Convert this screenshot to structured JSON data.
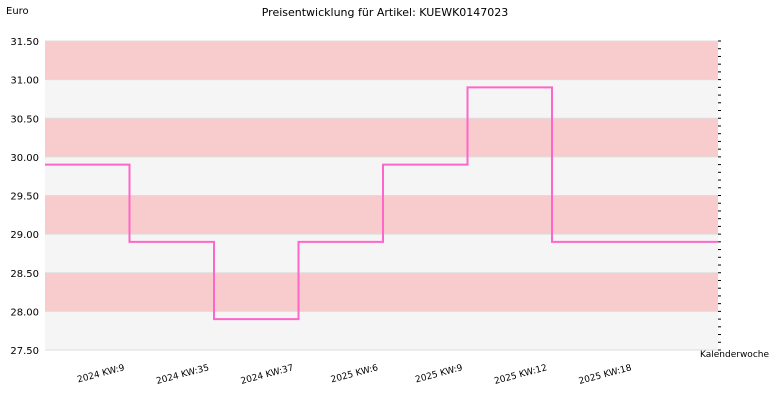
{
  "chart_data": {
    "type": "line",
    "step": true,
    "title": "Preisentwicklung für Artikel: KUEWK0147023",
    "ylabel": "Euro",
    "xlabel": "Kalenderwoche",
    "ylim": [
      27.5,
      31.5
    ],
    "yticks": [
      "31.50",
      "31.00",
      "30.50",
      "30.00",
      "29.50",
      "29.00",
      "28.50",
      "28.00",
      "27.50"
    ],
    "categories": [
      "2024 KW:9",
      "2024 KW:35",
      "2024 KW:37",
      "2025 KW:6",
      "2025 KW:9",
      "2025 KW:12",
      "2025 KW:18"
    ],
    "series": [
      {
        "values": [
          29.9,
          28.9,
          27.9,
          28.9,
          29.9,
          30.9,
          28.9
        ]
      }
    ],
    "grid": true,
    "band_colors": [
      "#f8cccc",
      "#f5f5f5"
    ],
    "line_color": "#ff66cc"
  }
}
